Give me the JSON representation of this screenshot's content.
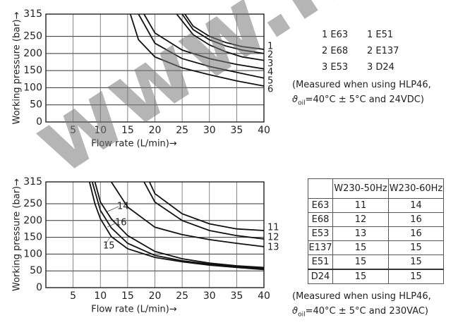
{
  "chart_data": [
    {
      "type": "line",
      "ylabel": "Working pressure (bar)→",
      "xlabel": "Flow rate (L/min)→",
      "xlim": [
        0,
        40
      ],
      "xticks": [
        5,
        10,
        15,
        20,
        25,
        30,
        35,
        40
      ],
      "ylim": [
        0,
        315
      ],
      "yticks": [
        0,
        50,
        100,
        150,
        200,
        250,
        315
      ],
      "grid": true,
      "color": "#111",
      "series": [
        {
          "name": "1",
          "x": [
            25.5,
            27,
            30,
            33,
            36,
            40
          ],
          "values": [
            315,
            280,
            250,
            232,
            220,
            212
          ]
        },
        {
          "name": "2",
          "x": [
            25,
            27,
            30,
            33,
            36,
            40
          ],
          "values": [
            315,
            270,
            240,
            222,
            210,
            200
          ]
        },
        {
          "name": "3",
          "x": [
            24,
            27,
            30,
            33,
            36,
            40
          ],
          "values": [
            315,
            255,
            225,
            205,
            190,
            180
          ]
        },
        {
          "name": "4",
          "x": [
            18,
            20,
            25,
            30,
            35,
            40
          ],
          "values": [
            315,
            260,
            210,
            185,
            168,
            155
          ]
        },
        {
          "name": "5",
          "x": [
            17,
            20,
            25,
            30,
            35,
            40
          ],
          "values": [
            315,
            230,
            185,
            162,
            145,
            128
          ]
        },
        {
          "name": "6",
          "x": [
            15.5,
            17,
            20,
            25,
            30,
            35,
            40
          ],
          "values": [
            315,
            240,
            190,
            158,
            138,
            120,
            105
          ]
        }
      ]
    },
    {
      "type": "line",
      "ylabel": "Working pressure (bar)→",
      "xlabel": "Flow rate (L/min)→",
      "xlim": [
        0,
        40
      ],
      "xticks": [
        5,
        10,
        15,
        20,
        25,
        30,
        35,
        40
      ],
      "ylim": [
        0,
        315
      ],
      "yticks": [
        0,
        50,
        100,
        150,
        200,
        250,
        315
      ],
      "grid": true,
      "color": "#111",
      "series": [
        {
          "name": "11",
          "x": [
            19,
            20,
            25,
            30,
            35,
            40
          ],
          "values": [
            315,
            280,
            220,
            190,
            175,
            170
          ]
        },
        {
          "name": "12",
          "x": [
            18,
            20,
            25,
            30,
            35,
            40
          ],
          "values": [
            315,
            255,
            200,
            170,
            155,
            145
          ]
        },
        {
          "name": "13",
          "x": [
            12,
            15,
            20,
            25,
            30,
            35,
            40
          ],
          "values": [
            315,
            240,
            180,
            158,
            143,
            132,
            122
          ]
        },
        {
          "name": "14",
          "x": [
            9,
            10,
            12,
            15,
            20,
            25,
            30,
            35,
            40
          ],
          "values": [
            315,
            255,
            205,
            155,
            108,
            86,
            73,
            65,
            60
          ]
        },
        {
          "name": "16",
          "x": [
            8.5,
            10,
            12,
            15,
            20,
            25,
            30,
            35,
            40
          ],
          "values": [
            315,
            230,
            178,
            132,
            96,
            80,
            70,
            62,
            57
          ]
        },
        {
          "name": "15",
          "x": [
            8,
            9,
            10,
            12,
            15,
            20,
            25,
            30,
            35,
            40
          ],
          "values": [
            315,
            250,
            205,
            152,
            116,
            90,
            77,
            67,
            60,
            54
          ]
        }
      ]
    }
  ],
  "legend_text": {
    "rows": [
      [
        "1 E63",
        "1 E51"
      ],
      [
        "2 E68",
        "2 E137"
      ],
      [
        "3 E53",
        "3 D24"
      ]
    ],
    "note1": {
      "line1": "(Measured when using HLP46,",
      "symbol": "ϑ",
      "sub": "oil",
      "rest": "=40°C ± 5°C and 24VDC)"
    }
  },
  "table": {
    "header": [
      "W230-50Hz",
      "W230-60Hz"
    ],
    "rows": [
      [
        "E63",
        "11",
        "14"
      ],
      [
        "E68",
        "12",
        "16"
      ],
      [
        "E53",
        "13",
        "16"
      ],
      [
        "E137",
        "15",
        "15"
      ],
      [
        "E51",
        "15",
        "15"
      ],
      [
        "D24",
        "15",
        "15"
      ]
    ]
  },
  "note2": {
    "line1": "(Measured when using HLP46,",
    "symbol": "ϑ",
    "sub": "oil",
    "rest": "=40°C ± 5°C and 230VAC)"
  },
  "watermark": "www.hy"
}
